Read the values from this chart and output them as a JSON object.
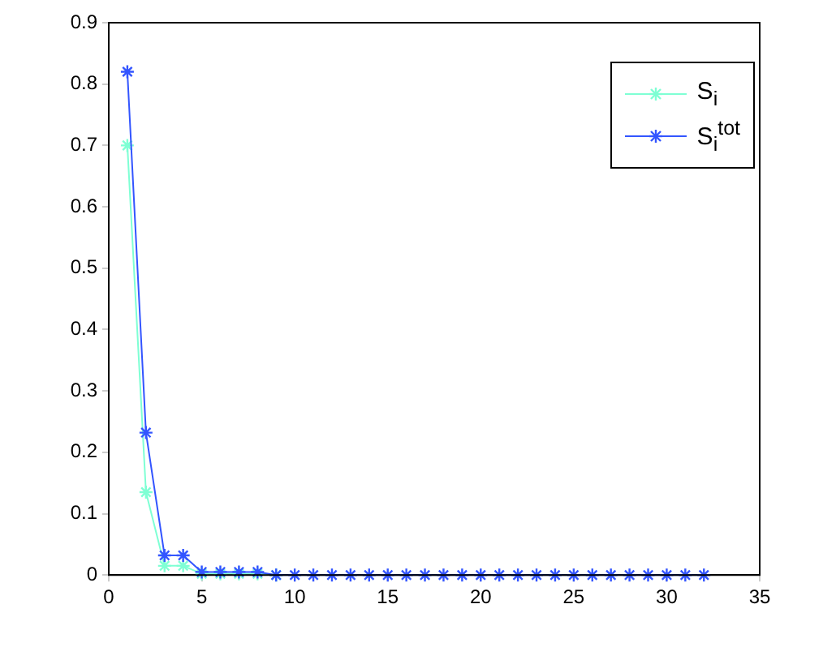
{
  "chart_data": {
    "type": "line",
    "x": [
      1,
      2,
      3,
      4,
      5,
      6,
      7,
      8,
      9,
      10,
      11,
      12,
      13,
      14,
      15,
      16,
      17,
      18,
      19,
      20,
      21,
      22,
      23,
      24,
      25,
      26,
      27,
      28,
      29,
      30,
      31,
      32
    ],
    "series": [
      {
        "name": "S$_{i}$",
        "color": "#7fffd4",
        "values": [
          0.7,
          0.135,
          0.015,
          0.015,
          0.002,
          0.002,
          0.002,
          0.002,
          0,
          null,
          null,
          null,
          null,
          null,
          null,
          null,
          null,
          null,
          null,
          null,
          null,
          null,
          null,
          null,
          null,
          null,
          null,
          null,
          null,
          null,
          null,
          null
        ]
      },
      {
        "name": "S$_{i}$$^{tot}$",
        "color": "#3355ff",
        "values": [
          0.82,
          0.232,
          0.032,
          0.032,
          0.005,
          0.005,
          0.005,
          0.005,
          0,
          0,
          0,
          0,
          0,
          0,
          0,
          0,
          0,
          0,
          0,
          0,
          0,
          0,
          0,
          0,
          0,
          0,
          0,
          0,
          0,
          0,
          0,
          0
        ]
      }
    ],
    "xlim": [
      0,
      35
    ],
    "xticks": [
      0,
      5,
      10,
      15,
      20,
      25,
      30,
      35
    ],
    "ylim": [
      0,
      0.9
    ],
    "yticks": [
      0,
      0.1,
      0.2,
      0.3,
      0.4,
      0.5,
      0.6,
      0.7,
      0.8,
      0.9
    ],
    "marker": "cross",
    "line_style": "solid",
    "grid": false,
    "legend": "top right"
  }
}
